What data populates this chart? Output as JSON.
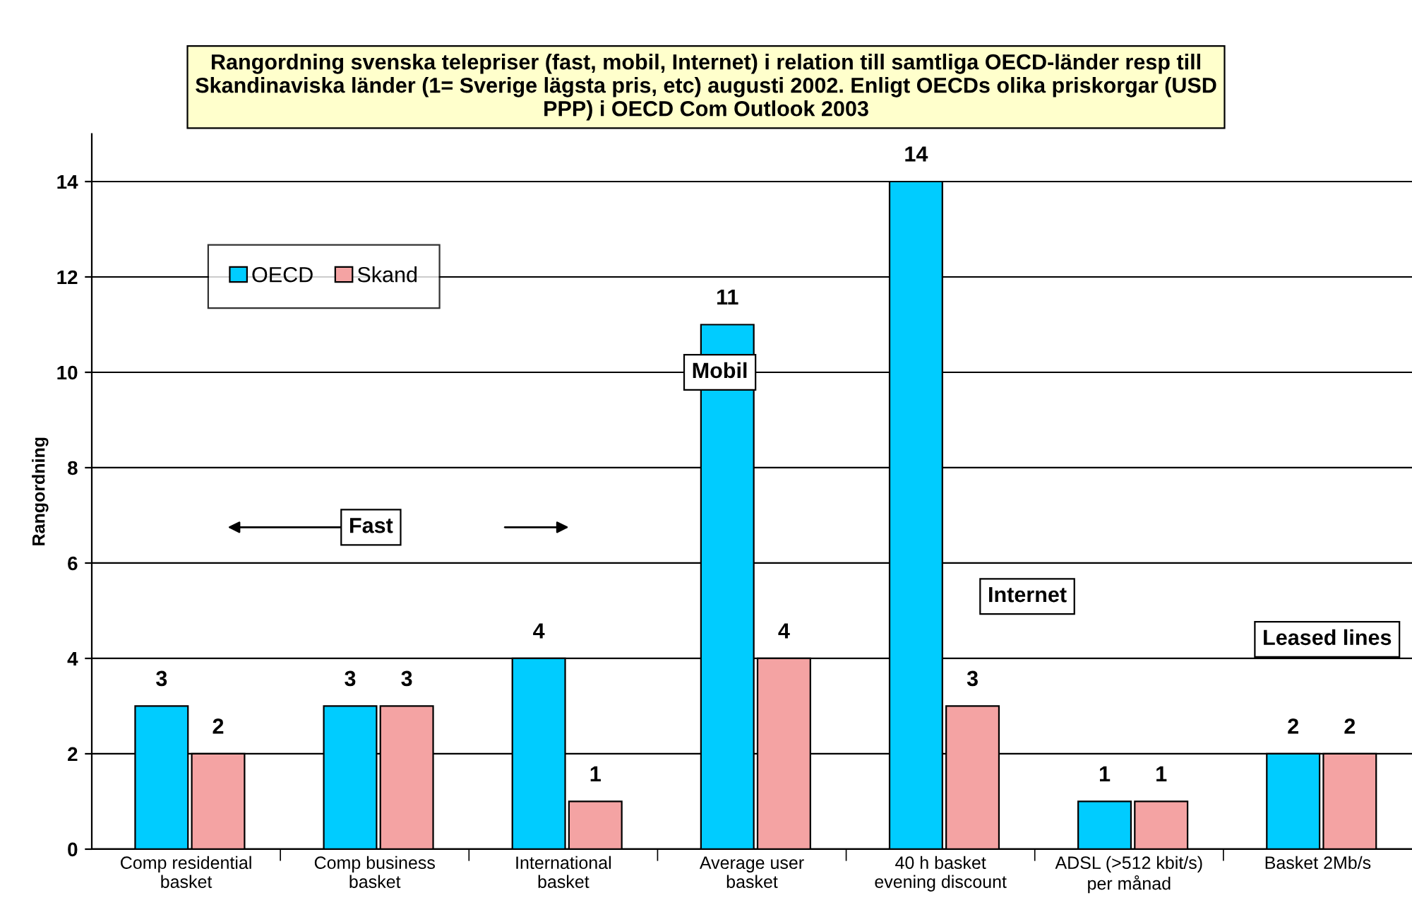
{
  "chart_data": {
    "type": "bar",
    "title": "Rangordning svenska telepriser (fast, mobil, Internet) i relation till samtliga OECD-länder resp till\nSkandinaviska länder (1= Sverige lägsta pris, etc) augusti 2002. Enligt OECDs olika priskorgar (USD\nPPP) i OECD Com Outlook 2003",
    "ylabel": "Rangordning",
    "categories": [
      "Comp residential\nbasket",
      "Comp business\nbasket",
      "International\nbasket",
      "Average user\nbasket",
      "40 h basket\nevening discount",
      "ADSL (>512 kbit/s)\nper månad",
      "Basket 2Mb/s"
    ],
    "series": [
      {
        "name": "OECD",
        "color": "#00ccff",
        "values": [
          3,
          3,
          4,
          11,
          14,
          1,
          2
        ]
      },
      {
        "name": "Skand",
        "color": "#f4a3a3",
        "values": [
          2,
          3,
          1,
          4,
          3,
          1,
          2
        ]
      }
    ],
    "ylim": [
      0,
      15
    ],
    "yticks": [
      0,
      2,
      4,
      6,
      8,
      10,
      12,
      14
    ],
    "grid": "y",
    "legend": "top left",
    "data_labels": true,
    "annotations": [
      "Fast",
      "Mobil",
      "Internet",
      "Leased lines"
    ]
  }
}
